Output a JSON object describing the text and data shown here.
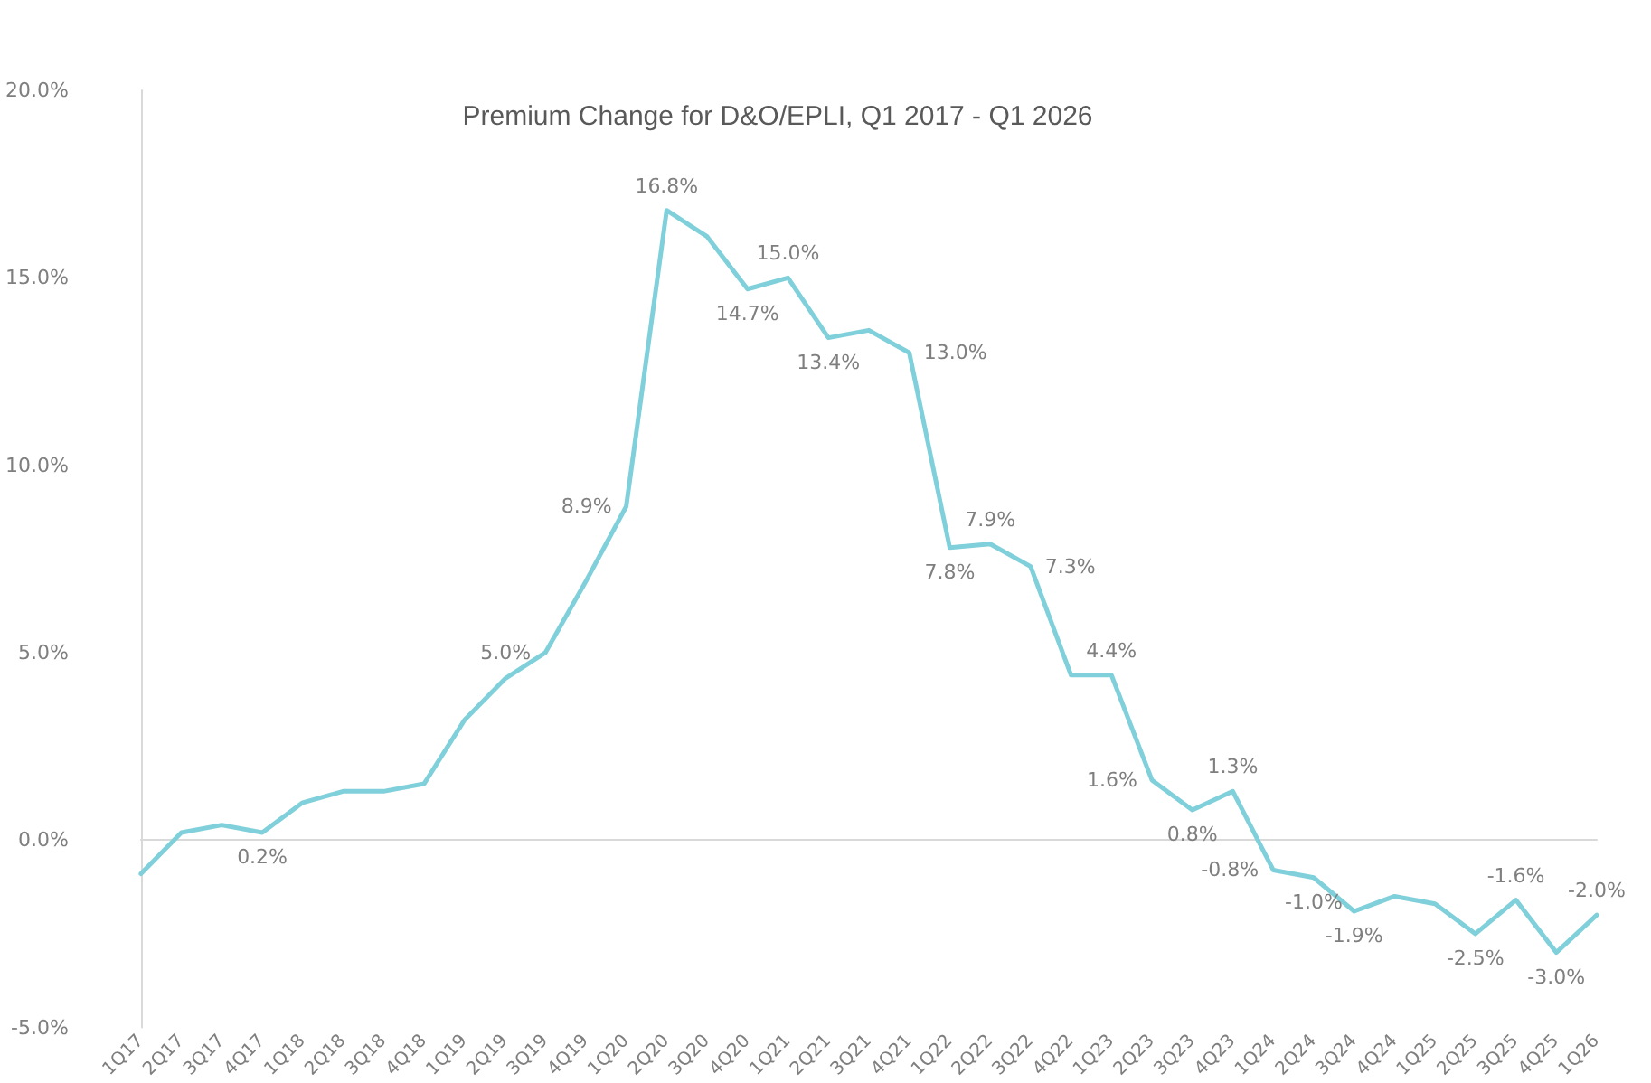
{
  "chart_data": {
    "type": "line",
    "title": "Premium Change for D&O/EPLI, Q1 2017 - Q1 2026",
    "categories": [
      "1Q17",
      "2Q17",
      "3Q17",
      "4Q17",
      "1Q18",
      "2Q18",
      "3Q18",
      "4Q18",
      "1Q19",
      "2Q19",
      "3Q19",
      "4Q19",
      "1Q20",
      "2Q20",
      "3Q20",
      "4Q20",
      "1Q21",
      "2Q21",
      "3Q21",
      "4Q21",
      "1Q22",
      "2Q22",
      "3Q22",
      "4Q22",
      "1Q23",
      "2Q23",
      "3Q23",
      "4Q23",
      "1Q24",
      "2Q24",
      "3Q24",
      "4Q24",
      "1Q25",
      "2Q25",
      "3Q25",
      "4Q25",
      "1Q26"
    ],
    "series": [
      {
        "color": "#7fd0da",
        "values": [
          -0.9,
          0.2,
          0.4,
          0.2,
          1.0,
          1.3,
          1.3,
          1.5,
          3.2,
          4.3,
          5.0,
          6.9,
          8.9,
          16.8,
          16.1,
          14.7,
          15.0,
          13.4,
          13.6,
          13.0,
          7.8,
          7.9,
          7.3,
          4.4,
          4.4,
          1.6,
          0.8,
          1.3,
          -0.8,
          -1.0,
          -1.9,
          -1.5,
          -1.7,
          -2.5,
          -1.6,
          -3.0,
          -2.0
        ],
        "value_labels": [
          null,
          null,
          null,
          "0.2%",
          null,
          null,
          null,
          null,
          null,
          null,
          "5.0%",
          null,
          "8.9%",
          "16.8%",
          null,
          "14.7%",
          "15.0%",
          "13.4%",
          null,
          "13.0%",
          "7.8%",
          "7.9%",
          "7.3%",
          null,
          "4.4%",
          "1.6%",
          "0.8%",
          "1.3%",
          "-0.8%",
          "-1.0%",
          "-1.9%",
          null,
          null,
          "-2.5%",
          "-1.6%",
          "-3.0%",
          "-2.0%"
        ]
      }
    ],
    "ylim": [
      -5,
      20
    ],
    "yticks": [
      {
        "value": -5,
        "label": "-5.0%"
      },
      {
        "value": 0,
        "label": "0.0%"
      },
      {
        "value": 5,
        "label": "5.0%"
      },
      {
        "value": 10,
        "label": "10.0%"
      },
      {
        "value": 15,
        "label": "15.0%"
      },
      {
        "value": 20,
        "label": "20.0%"
      }
    ],
    "marker": "none",
    "line_style": "solid"
  }
}
